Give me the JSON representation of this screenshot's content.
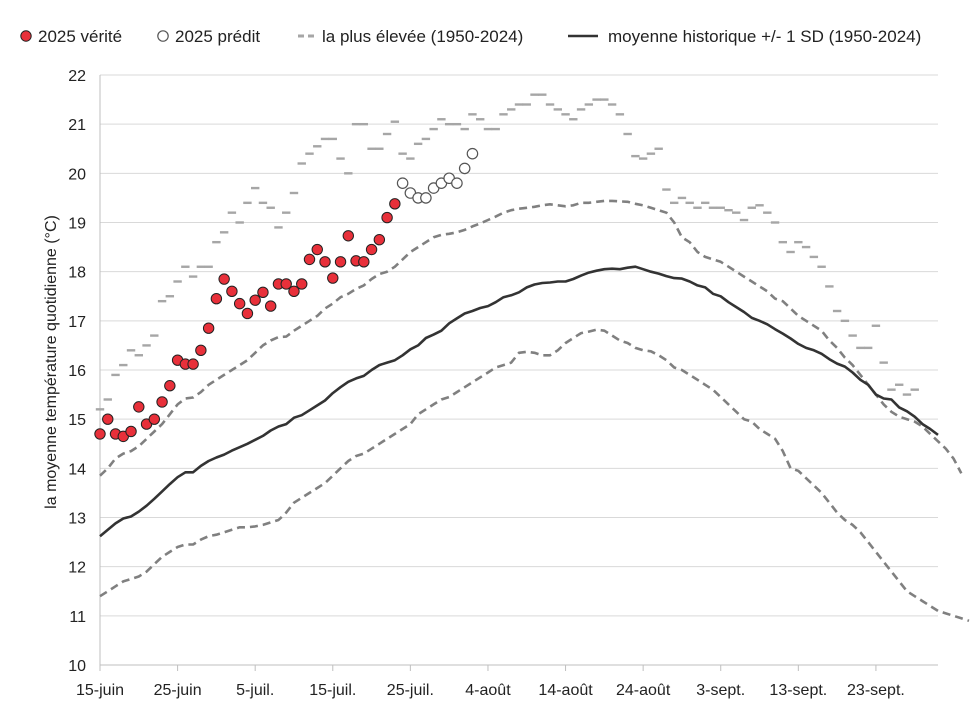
{
  "chart_data": {
    "type": "line",
    "title": "",
    "xlabel": "",
    "ylabel": "la moyenne température quotidienne (°C)",
    "ylim": [
      10,
      22
    ],
    "yticks": [
      10,
      11,
      12,
      13,
      14,
      15,
      16,
      17,
      18,
      19,
      20,
      21,
      22
    ],
    "xlim_day_index": [
      0,
      108
    ],
    "x_tick_labels": [
      {
        "day": 0,
        "label": "15-juin"
      },
      {
        "day": 10,
        "label": "25-juin"
      },
      {
        "day": 20,
        "label": "5-juil."
      },
      {
        "day": 30,
        "label": "15-juil."
      },
      {
        "day": 40,
        "label": "25-juil."
      },
      {
        "day": 50,
        "label": "4-août"
      },
      {
        "day": 60,
        "label": "14-août"
      },
      {
        "day": 70,
        "label": "24-août"
      },
      {
        "day": 80,
        "label": "3-sept."
      },
      {
        "day": 90,
        "label": "13-sept."
      },
      {
        "day": 100,
        "label": "23-sept."
      }
    ],
    "legend": [
      "2025 vérité",
      "2025 prédit",
      "la plus élevée (1950-2024)",
      "moyenne historique +/- 1 SD (1950-2024)"
    ],
    "legend_position": "top",
    "series": [
      {
        "name": "2025 vérité",
        "style": "marker-filled",
        "color": "#e8303a",
        "x": [
          0,
          1,
          2,
          3,
          4,
          5,
          6,
          7,
          8,
          9,
          10,
          11,
          12,
          13,
          14,
          15,
          16,
          17,
          18,
          19,
          20,
          21,
          22,
          23,
          24,
          25,
          26,
          27,
          28,
          29,
          30,
          31,
          32,
          33,
          34,
          35,
          36,
          37,
          38
        ],
        "values": [
          14.7,
          15.0,
          14.7,
          14.65,
          14.75,
          15.25,
          14.9,
          15.0,
          15.35,
          15.68,
          16.2,
          16.12,
          16.12,
          16.4,
          16.85,
          17.45,
          17.85,
          17.6,
          17.35,
          17.15,
          17.42,
          17.58,
          17.3,
          17.75,
          17.75,
          17.6,
          17.75,
          18.25,
          18.45,
          18.2,
          17.87,
          18.2,
          18.73,
          18.22,
          18.2,
          18.45,
          18.65,
          19.1,
          19.38
        ]
      },
      {
        "name": "2025 prédit",
        "style": "marker-open",
        "color": "#555555",
        "x": [
          39,
          40,
          41,
          42,
          43,
          44,
          45,
          46,
          47,
          48
        ],
        "values": [
          19.8,
          19.6,
          19.5,
          19.5,
          19.7,
          19.8,
          19.9,
          19.8,
          20.1,
          20.4
        ]
      },
      {
        "name": "la plus élevée (1950-2024)",
        "style": "dash-steps",
        "color": "#a6a6a6",
        "values": [
          15.2,
          15.4,
          15.9,
          16.1,
          16.4,
          16.3,
          16.5,
          16.7,
          17.4,
          17.5,
          17.8,
          18.1,
          17.9,
          18.1,
          18.1,
          18.6,
          18.8,
          19.2,
          19.0,
          19.4,
          19.7,
          19.4,
          19.3,
          18.9,
          19.2,
          19.6,
          20.2,
          20.4,
          20.55,
          20.7,
          20.7,
          20.3,
          20.0,
          21.0,
          21.0,
          20.5,
          20.5,
          20.8,
          21.05,
          20.4,
          20.3,
          20.6,
          20.7,
          20.9,
          21.1,
          21.0,
          21.0,
          20.9,
          21.2,
          21.1,
          20.9,
          20.9,
          21.2,
          21.3,
          21.4,
          21.4,
          21.6,
          21.6,
          21.4,
          21.3,
          21.2,
          21.1,
          21.3,
          21.4,
          21.5,
          21.5,
          21.4,
          21.2,
          20.8,
          20.35,
          20.3,
          20.4,
          20.5,
          19.67,
          19.4,
          19.5,
          19.4,
          19.3,
          19.4,
          19.3,
          19.3,
          19.25,
          19.2,
          19.05,
          19.3,
          19.35,
          19.2,
          19.0,
          18.6,
          18.4,
          18.6,
          18.5,
          18.3,
          18.1,
          17.7,
          17.2,
          17.0,
          16.7,
          16.45,
          16.45,
          16.9,
          16.15,
          15.6,
          15.7,
          15.5,
          15.6
        ]
      },
      {
        "name": "moyenne historique +/- 1 SD (1950-2024)",
        "style": "solid",
        "color": "#333333",
        "values": [
          12.62,
          12.75,
          12.88,
          12.98,
          13.02,
          13.12,
          13.24,
          13.38,
          13.53,
          13.68,
          13.82,
          13.92,
          13.92,
          14.05,
          14.15,
          14.22,
          14.28,
          14.36,
          14.43,
          14.5,
          14.58,
          14.66,
          14.77,
          14.85,
          14.9,
          15.03,
          15.08,
          15.18,
          15.28,
          15.38,
          15.53,
          15.65,
          15.76,
          15.83,
          15.88,
          16.0,
          16.1,
          16.15,
          16.2,
          16.3,
          16.42,
          16.5,
          16.65,
          16.72,
          16.8,
          16.95,
          17.05,
          17.15,
          17.2,
          17.26,
          17.3,
          17.38,
          17.48,
          17.52,
          17.58,
          17.68,
          17.74,
          17.77,
          17.78,
          17.8,
          17.8,
          17.85,
          17.92,
          17.98,
          18.02,
          18.05,
          18.06,
          18.05,
          18.08,
          18.1,
          18.05,
          18.0,
          17.96,
          17.91,
          17.87,
          17.86,
          17.8,
          17.72,
          17.68,
          17.55,
          17.5,
          17.38,
          17.28,
          17.18,
          17.06,
          17.0,
          16.93,
          16.83,
          16.74,
          16.64,
          16.53,
          16.45,
          16.4,
          16.33,
          16.22,
          16.13,
          16.07,
          15.95,
          15.8,
          15.7,
          15.5,
          15.42,
          15.4,
          15.24,
          15.16,
          15.05,
          14.9,
          14.8,
          14.68
        ]
      },
      {
        "name": "+1 SD",
        "style": "dashed",
        "color": "#808080",
        "values": [
          13.85,
          14.0,
          14.2,
          14.3,
          14.35,
          14.45,
          14.6,
          14.75,
          14.9,
          15.1,
          15.3,
          15.42,
          15.44,
          15.55,
          15.7,
          15.8,
          15.9,
          16.0,
          16.1,
          16.2,
          16.35,
          16.5,
          16.6,
          16.67,
          16.68,
          16.8,
          16.9,
          17.0,
          17.1,
          17.25,
          17.35,
          17.48,
          17.55,
          17.65,
          17.72,
          17.85,
          17.95,
          18.0,
          18.1,
          18.25,
          18.4,
          18.5,
          18.6,
          18.7,
          18.75,
          18.77,
          18.8,
          18.85,
          18.92,
          18.98,
          19.05,
          19.12,
          19.2,
          19.25,
          19.28,
          19.3,
          19.32,
          19.35,
          19.37,
          19.35,
          19.33,
          19.35,
          19.4,
          19.4,
          19.42,
          19.44,
          19.44,
          19.43,
          19.42,
          19.38,
          19.35,
          19.3,
          19.25,
          19.2,
          19.0,
          18.7,
          18.6,
          18.4,
          18.3,
          18.25,
          18.2,
          18.1,
          18.0,
          17.9,
          17.8,
          17.7,
          17.6,
          17.45,
          17.4,
          17.25,
          17.1,
          17.0,
          16.9,
          16.8,
          16.6,
          16.45,
          16.25,
          16.1,
          15.9,
          15.7,
          15.5,
          15.3,
          15.15,
          15.05,
          15.0,
          14.95,
          14.85,
          14.7,
          14.55,
          14.4,
          14.2,
          13.9
        ]
      },
      {
        "name": "-1 SD",
        "style": "dashed",
        "color": "#808080",
        "values": [
          11.4,
          11.5,
          11.6,
          11.7,
          11.75,
          11.8,
          11.9,
          12.05,
          12.2,
          12.3,
          12.4,
          12.45,
          12.45,
          12.55,
          12.62,
          12.65,
          12.7,
          12.75,
          12.8,
          12.8,
          12.82,
          12.85,
          12.9,
          12.95,
          13.1,
          13.3,
          13.4,
          13.5,
          13.6,
          13.7,
          13.85,
          14.0,
          14.15,
          14.25,
          14.3,
          14.4,
          14.5,
          14.6,
          14.7,
          14.8,
          14.9,
          15.1,
          15.2,
          15.3,
          15.4,
          15.45,
          15.55,
          15.65,
          15.75,
          15.85,
          15.95,
          16.05,
          16.1,
          16.15,
          16.35,
          16.37,
          16.35,
          16.3,
          16.3,
          16.4,
          16.55,
          16.65,
          16.75,
          16.78,
          16.82,
          16.8,
          16.7,
          16.6,
          16.55,
          16.45,
          16.4,
          16.38,
          16.3,
          16.2,
          16.05,
          16.0,
          15.9,
          15.8,
          15.7,
          15.6,
          15.45,
          15.3,
          15.15,
          15.0,
          14.95,
          14.8,
          14.7,
          14.6,
          14.35,
          14.0,
          13.95,
          13.8,
          13.65,
          13.5,
          13.3,
          13.1,
          12.95,
          12.85,
          12.7,
          12.5,
          12.3,
          12.1,
          11.9,
          11.7,
          11.5,
          11.4,
          11.3,
          11.2,
          11.1,
          11.05,
          11.0,
          10.95,
          10.9
        ]
      }
    ]
  }
}
